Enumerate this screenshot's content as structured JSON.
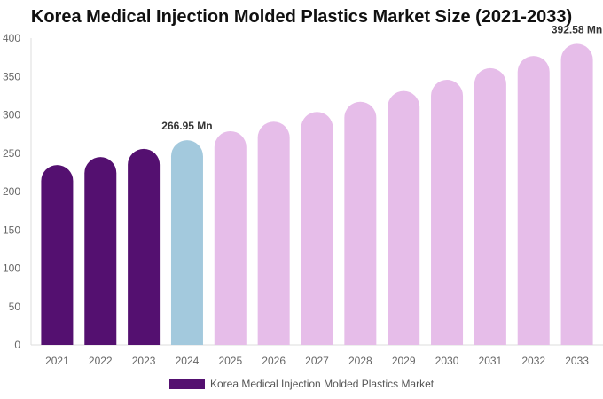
{
  "chart_data": {
    "type": "bar",
    "title": "Korea Medical Injection Molded Plastics Market Size (2021-2033)",
    "categories": [
      "2021",
      "2022",
      "2023",
      "2024",
      "2025",
      "2026",
      "2027",
      "2028",
      "2029",
      "2030",
      "2031",
      "2032",
      "2033"
    ],
    "series": [
      {
        "name": "Korea Medical Injection Molded Plastics Market",
        "values": [
          234.6,
          244.9,
          255.7,
          266.95,
          278.7,
          291.0,
          303.8,
          317.1,
          331.0,
          345.6,
          360.8,
          376.7,
          392.58
        ]
      }
    ],
    "data_labels": {
      "3": "266.95 Mn",
      "12": "392.58 Mn"
    },
    "ylim": [
      0,
      400
    ],
    "yticks": [
      0,
      50,
      100,
      150,
      200,
      250,
      300,
      350,
      400
    ],
    "grid": false,
    "legend": "bottom",
    "colors": {
      "historical": "#541070",
      "current": "#a3c9dd",
      "forecast": "#e6bde9"
    }
  }
}
